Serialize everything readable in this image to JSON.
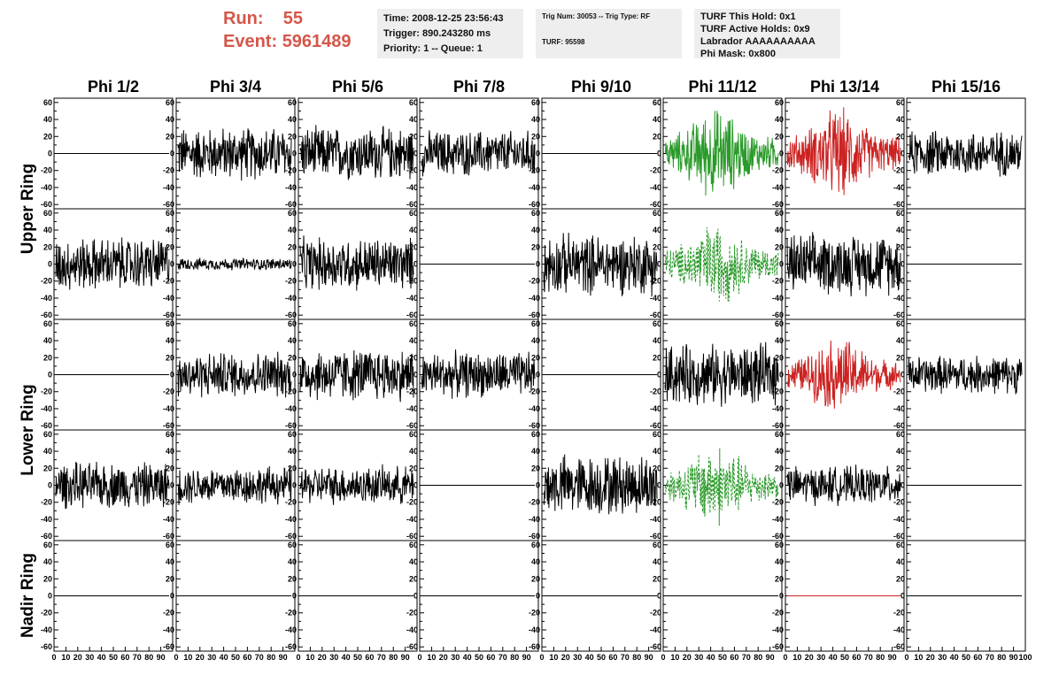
{
  "header": {
    "run_label": "Run:",
    "run_value": "55",
    "event_label": "Event:",
    "event_value": "5961489",
    "time": "Time: 2008-12-25 23:56:43",
    "trigger": "Trigger: 890.243280 ms",
    "priority": "Priority: 1 -- Queue: 1",
    "trig_num": "Trig Num: 30053 -- Trig Type: RF",
    "turf": "TURF: 95598",
    "turf_hold": "TURF This Hold: 0x1",
    "turf_active": "TURF Active Holds: 0x9",
    "labrador": "Labrador AAAAAAAAAA",
    "phi_mask": "Phi Mask: 0x800"
  },
  "colors": {
    "header_red": "#d4574a",
    "info_bg": "#eeeeee",
    "trace_black": "#000000",
    "trace_green": "#2a9a2a",
    "trace_red": "#cc2222"
  },
  "chart_data": {
    "type": "line",
    "columns": [
      "Phi 1/2",
      "Phi 3/4",
      "Phi 5/6",
      "Phi 7/8",
      "Phi 9/10",
      "Phi 11/12",
      "Phi 13/14",
      "Phi 15/16"
    ],
    "ring_labels": [
      "Upper Ring",
      "Lower Ring",
      "Nadir Ring"
    ],
    "ylim": [
      -65,
      65
    ],
    "xlim": [
      0,
      100
    ],
    "y_ticks": [
      -60,
      -40,
      -20,
      0,
      20,
      40,
      60
    ],
    "x_ticks": [
      0,
      10,
      20,
      30,
      40,
      50,
      60,
      70,
      80,
      90,
      100
    ],
    "rows": [
      [
        {
          "color": "black",
          "amp": 0,
          "style": "solid"
        },
        {
          "color": "black",
          "amp": 35,
          "style": "solid"
        },
        {
          "color": "black",
          "amp": 35,
          "style": "solid"
        },
        {
          "color": "black",
          "amp": 30,
          "style": "solid"
        },
        {
          "color": "black",
          "amp": 0,
          "style": "solid"
        },
        {
          "color": "green",
          "amp": 60,
          "style": "solid"
        },
        {
          "color": "red",
          "amp": 60,
          "style": "solid"
        },
        {
          "color": "black",
          "amp": 30,
          "style": "solid"
        }
      ],
      [
        {
          "color": "black",
          "amp": 35,
          "style": "solid"
        },
        {
          "color": "black",
          "amp": 8,
          "style": "solid"
        },
        {
          "color": "black",
          "amp": 35,
          "style": "solid"
        },
        {
          "color": "black",
          "amp": 0,
          "style": "solid"
        },
        {
          "color": "black",
          "amp": 40,
          "style": "solid"
        },
        {
          "color": "green",
          "amp": 55,
          "style": "dashed"
        },
        {
          "color": "black",
          "amp": 40,
          "style": "solid"
        },
        {
          "color": "black",
          "amp": 0,
          "style": "solid"
        }
      ],
      [
        {
          "color": "black",
          "amp": 0,
          "style": "solid"
        },
        {
          "color": "black",
          "amp": 30,
          "style": "solid"
        },
        {
          "color": "black",
          "amp": 35,
          "style": "solid"
        },
        {
          "color": "black",
          "amp": 30,
          "style": "solid"
        },
        {
          "color": "black",
          "amp": 0,
          "style": "solid"
        },
        {
          "color": "black",
          "amp": 40,
          "style": "solid"
        },
        {
          "color": "red",
          "amp": 50,
          "style": "solid"
        },
        {
          "color": "black",
          "amp": 25,
          "style": "solid"
        }
      ],
      [
        {
          "color": "black",
          "amp": 30,
          "style": "solid"
        },
        {
          "color": "black",
          "amp": 25,
          "style": "solid"
        },
        {
          "color": "black",
          "amp": 25,
          "style": "solid"
        },
        {
          "color": "black",
          "amp": 0,
          "style": "solid"
        },
        {
          "color": "black",
          "amp": 40,
          "style": "solid"
        },
        {
          "color": "green",
          "amp": 55,
          "style": "dashed"
        },
        {
          "color": "black",
          "amp": 25,
          "style": "solid"
        },
        {
          "color": "black",
          "amp": 0,
          "style": "solid"
        }
      ],
      [
        {
          "color": "black",
          "amp": 0,
          "style": "solid"
        },
        {
          "color": "black",
          "amp": 0,
          "style": "solid"
        },
        {
          "color": "black",
          "amp": 0,
          "style": "solid"
        },
        {
          "color": "black",
          "amp": 0,
          "style": "solid"
        },
        {
          "color": "black",
          "amp": 0,
          "style": "solid"
        },
        {
          "color": "black",
          "amp": 0,
          "style": "solid"
        },
        {
          "color": "red",
          "amp": 0,
          "style": "solid"
        },
        {
          "color": "black",
          "amp": 0,
          "style": "solid"
        }
      ]
    ]
  }
}
